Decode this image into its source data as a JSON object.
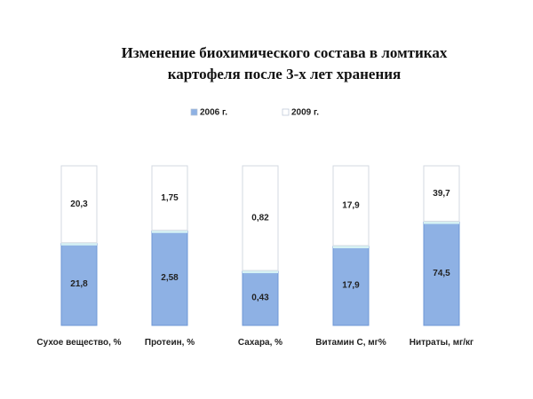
{
  "chart_data": {
    "type": "bar",
    "stacked": "percent",
    "title": "Изменение биохимического состава в ломтиках картофеля после 3-х лет хранения",
    "categories": [
      "Сухое вещество, %",
      "Протеин, %",
      "Сахара, %",
      "Витамин С, мг%",
      "Нитраты, мг/кг"
    ],
    "series": [
      {
        "name": "2006 г.",
        "color": "#8eb1e4",
        "values": [
          21.8,
          2.58,
          0.43,
          17.9,
          74.5
        ],
        "value_labels": [
          "21,8",
          "2,58",
          "0,43",
          "17,9",
          "74,5"
        ]
      },
      {
        "name": "2009 г.",
        "color": "#ffffff",
        "values": [
          20.3,
          1.75,
          0.82,
          17.9,
          39.7
        ],
        "value_labels": [
          "20,3",
          "1,75",
          "0,82",
          "17,9",
          "39,7"
        ]
      }
    ],
    "legend": "top"
  }
}
